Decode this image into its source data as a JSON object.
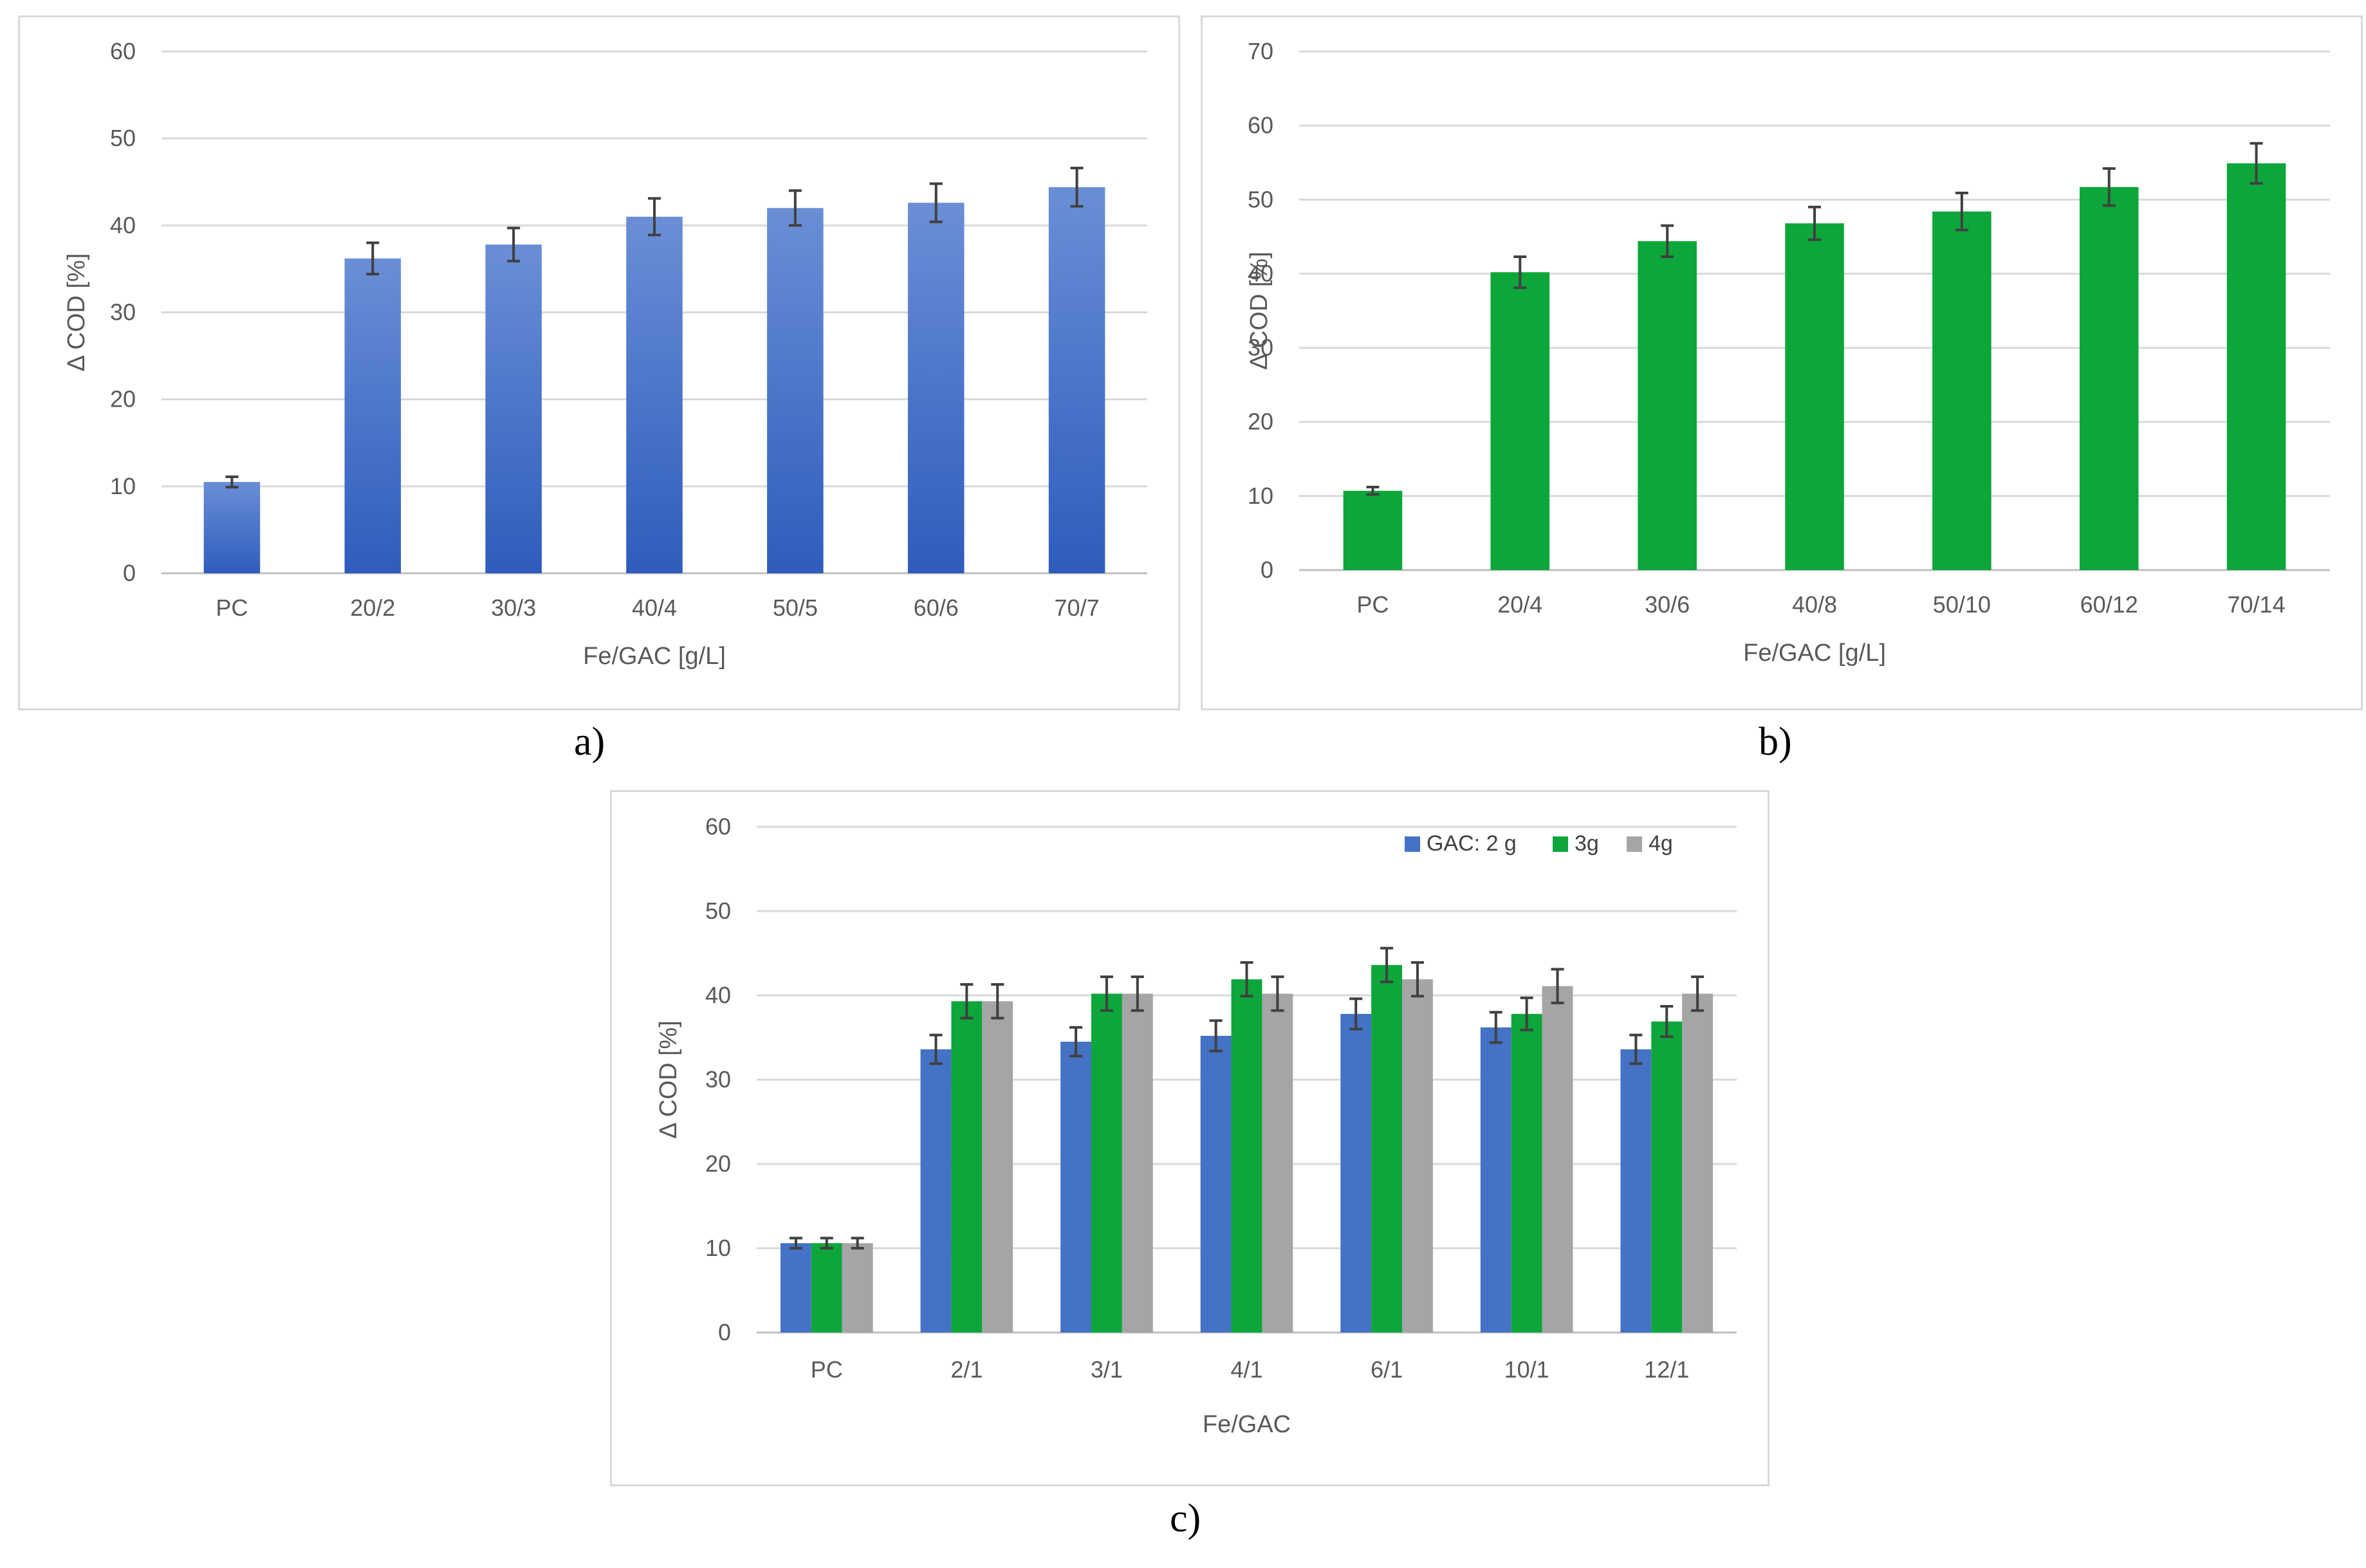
{
  "chart_data": [
    {
      "id": "a",
      "type": "bar",
      "caption": "a)",
      "title": "",
      "xlabel": "Fe/GAC [g/L]",
      "ylabel": "Δ COD [%]",
      "ylim": [
        0,
        60
      ],
      "yticks": [
        0,
        10,
        20,
        30,
        40,
        50,
        60
      ],
      "grid": true,
      "legend": "none",
      "categories": [
        "PC",
        "20/2",
        "30/3",
        "40/4",
        "50/5",
        "60/6",
        "70/7"
      ],
      "series": [
        {
          "name": "Δ COD",
          "color": "#4472c4",
          "values": [
            10.5,
            36.2,
            37.8,
            41.0,
            42.0,
            42.6,
            44.4
          ],
          "errors": [
            0.6,
            1.8,
            1.9,
            2.1,
            2.0,
            2.2,
            2.2
          ]
        }
      ]
    },
    {
      "id": "b",
      "type": "bar",
      "caption": "b)",
      "title": "",
      "xlabel": "Fe/GAC [g/L]",
      "ylabel": "Δ COD [%]",
      "ylim": [
        0,
        70
      ],
      "yticks": [
        0,
        10,
        20,
        30,
        40,
        50,
        60,
        70
      ],
      "grid": true,
      "legend": "none",
      "categories": [
        "PC",
        "20/4",
        "30/6",
        "40/8",
        "50/10",
        "60/12",
        "70/14"
      ],
      "series": [
        {
          "name": "Δ COD",
          "color": "#0ca63a",
          "values": [
            10.7,
            40.2,
            44.4,
            46.8,
            48.4,
            51.7,
            54.9
          ],
          "errors": [
            0.5,
            2.1,
            2.1,
            2.2,
            2.5,
            2.5,
            2.7
          ]
        }
      ]
    },
    {
      "id": "c",
      "type": "bar",
      "caption": "c)",
      "title": "",
      "xlabel": "Fe/GAC",
      "ylabel": "Δ COD [%]",
      "ylim": [
        0,
        60
      ],
      "yticks": [
        0,
        10,
        20,
        30,
        40,
        50,
        60
      ],
      "grid": true,
      "legend": "top-right",
      "categories": [
        "PC",
        "2/1",
        "3/1",
        "4/1",
        "6/1",
        "10/1",
        "12/1"
      ],
      "series": [
        {
          "name": "GAC: 2 g",
          "color": "#4472c4",
          "values": [
            10.6,
            33.6,
            34.5,
            35.2,
            37.8,
            36.2,
            33.6
          ],
          "errors": [
            0.6,
            1.7,
            1.7,
            1.8,
            1.8,
            1.8,
            1.7
          ]
        },
        {
          "name": "3g",
          "color": "#0ca63a",
          "values": [
            10.6,
            39.3,
            40.2,
            41.9,
            43.6,
            37.8,
            36.9
          ],
          "errors": [
            0.6,
            2.0,
            2.0,
            2.0,
            2.0,
            1.9,
            1.8
          ]
        },
        {
          "name": "4g",
          "color": "#a5a5a5",
          "values": [
            10.6,
            39.3,
            40.2,
            40.2,
            41.9,
            41.1,
            40.2
          ],
          "errors": [
            0.6,
            2.0,
            2.0,
            2.0,
            2.0,
            2.0,
            2.0
          ]
        }
      ]
    }
  ]
}
